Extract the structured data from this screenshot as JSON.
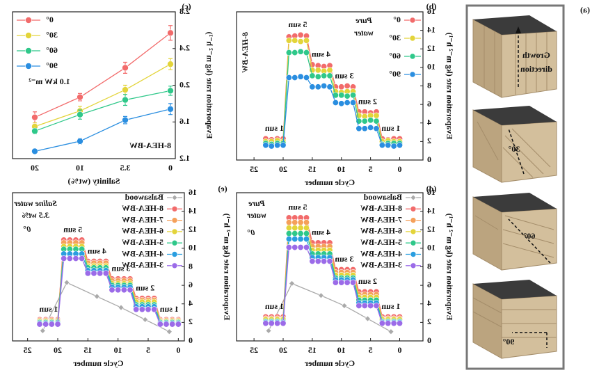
{
  "panel_a": {
    "label": "(a)",
    "growth_direction": [
      "Growth",
      "direction"
    ],
    "angles": [
      "30°",
      "60°",
      "90°"
    ]
  },
  "chart_data": [
    {
      "type": "line",
      "label": "(b)",
      "x_label": "Cycle number",
      "y_label": "Evaporation rate (kg m⁻² h⁻¹)",
      "xlim": [
        -4,
        28
      ],
      "xticks": [
        0,
        5,
        10,
        15,
        20,
        25
      ],
      "ylim": [
        0,
        16
      ],
      "yticks": [
        0,
        2,
        4,
        6,
        8,
        10,
        12,
        14,
        16
      ],
      "legend": "upper left",
      "notes": [
        "Pure",
        "water",
        "8-HEA-BW"
      ],
      "level_labels": [
        "1 sun",
        "2 sun",
        "3 sun",
        "4 sun",
        "5 sun",
        "1 sun"
      ],
      "x": [
        0,
        1,
        2,
        3,
        4,
        5,
        6,
        7,
        8,
        9,
        10,
        11,
        12,
        13,
        14,
        15,
        16,
        17,
        18,
        19,
        20,
        21,
        22,
        23
      ],
      "series": [
        {
          "name": "0°",
          "color": "#f26b6b",
          "values": [
            2.3,
            2.3,
            2.2,
            2.3,
            5.2,
            5.1,
            5.2,
            5.2,
            7.9,
            8.0,
            7.9,
            7.9,
            10.2,
            10.1,
            10.2,
            10.3,
            13.4,
            13.5,
            13.4,
            13.3,
            2.3,
            2.3,
            2.2,
            2.3
          ]
        },
        {
          "name": "30°",
          "color": "#e3d43a",
          "values": [
            2.0,
            2.0,
            2.1,
            2.0,
            4.8,
            4.8,
            4.7,
            4.8,
            7.4,
            7.4,
            7.3,
            7.4,
            9.7,
            9.6,
            9.7,
            9.7,
            12.9,
            12.8,
            12.9,
            12.9,
            2.0,
            2.1,
            2.0,
            2.0
          ]
        },
        {
          "name": "60°",
          "color": "#2fc88a",
          "values": [
            1.8,
            1.8,
            1.8,
            1.7,
            4.2,
            4.3,
            4.2,
            4.2,
            7.0,
            6.9,
            7.0,
            7.0,
            9.1,
            9.1,
            9.0,
            9.1,
            11.6,
            11.7,
            11.6,
            11.6,
            1.8,
            1.8,
            1.7,
            1.8
          ]
        },
        {
          "name": "90°",
          "color": "#2a8ee0",
          "values": [
            1.6,
            1.5,
            1.6,
            1.6,
            3.4,
            3.5,
            3.4,
            3.4,
            6.2,
            6.2,
            6.1,
            6.2,
            7.9,
            8.0,
            7.9,
            7.9,
            8.9,
            9.0,
            8.9,
            8.9,
            1.6,
            1.6,
            1.5,
            1.6
          ]
        }
      ]
    },
    {
      "type": "line",
      "label": "(c)",
      "x_label": "Salinity (wt%)",
      "y_label": "Evaporation rate (kg m⁻² h⁻¹)",
      "ylim": [
        1.2,
        2.8
      ],
      "yticks": [
        1.2,
        1.6,
        {
          "value": 2,
          "label": "2.0"
        },
        2.4,
        2.8
      ],
      "legend": "upper right",
      "notes": [
        "1.0 kW m⁻²",
        "8-HEA-BW"
      ],
      "categories": [
        "0",
        "3.5",
        "10",
        "20"
      ],
      "series": [
        {
          "name": "0°",
          "color": "#f26b6b",
          "values": [
            2.57,
            2.19,
            1.87,
            1.65
          ],
          "errors": [
            0.08,
            0.06,
            0.04,
            0.06
          ]
        },
        {
          "name": "30°",
          "color": "#e3d43a",
          "values": [
            2.23,
            1.95,
            1.72,
            1.55
          ],
          "errors": [
            0.06,
            0.05,
            0.05,
            0.04
          ]
        },
        {
          "name": "60°",
          "color": "#2fc88a",
          "values": [
            1.94,
            1.84,
            1.68,
            1.5
          ],
          "errors": [
            0.05,
            0.06,
            0.05,
            0.03
          ]
        },
        {
          "name": "90°",
          "color": "#2a8ee0",
          "values": [
            1.74,
            1.62,
            1.39,
            1.28
          ],
          "errors": [
            0.06,
            0.04,
            0.03,
            0.02
          ]
        }
      ]
    },
    {
      "type": "line",
      "label": "(d)",
      "x_label": "Cycle number",
      "y_label": "Evaporation rate (kg m⁻² h⁻¹)",
      "xlim": [
        -4,
        28
      ],
      "xticks": [
        0,
        5,
        10,
        15,
        20,
        25
      ],
      "ylim": [
        0,
        16
      ],
      "yticks": [
        0,
        2,
        4,
        6,
        8,
        10,
        12,
        14,
        16
      ],
      "legend": "upper left",
      "notes": [
        "Pure",
        "water",
        "0°"
      ],
      "level_labels": [
        "1 sun",
        "2 sun",
        "3 sun",
        "4 sun",
        "5 sun",
        "1 sun"
      ],
      "x": [
        0,
        1,
        2,
        3,
        4,
        5,
        6,
        7,
        8,
        9,
        10,
        11,
        12,
        13,
        14,
        15,
        16,
        17,
        18,
        19,
        20,
        21,
        22,
        23
      ],
      "series": [
        {
          "name": "Balsawood",
          "color": "#aaaaaa",
          "marker": "diamond",
          "x": [
            1.5,
            5.5,
            9.5,
            13.5,
            18.5,
            22.5
          ],
          "values": [
            1.0,
            2.4,
            3.8,
            4.9,
            6.2,
            1.1
          ]
        },
        {
          "name": "8-HEA-BW",
          "color": "#f26b6b",
          "values": [
            2.6,
            2.6,
            2.6,
            2.6,
            5.3,
            5.3,
            5.3,
            5.3,
            7.7,
            7.7,
            7.7,
            7.7,
            10.6,
            10.6,
            10.6,
            10.6,
            13.3,
            13.3,
            13.3,
            13.3,
            2.6,
            2.6,
            2.6,
            2.6
          ]
        },
        {
          "name": "7-HEA-BW",
          "color": "#f5a05a",
          "values": [
            2.4,
            2.4,
            2.4,
            2.4,
            5.0,
            5.0,
            5.0,
            5.0,
            7.4,
            7.4,
            7.4,
            7.4,
            10.2,
            10.2,
            10.2,
            10.2,
            12.8,
            12.8,
            12.8,
            12.8,
            2.4,
            2.4,
            2.4,
            2.4
          ]
        },
        {
          "name": "6-HEA-BW",
          "color": "#e3d43a",
          "values": [
            2.3,
            2.3,
            2.3,
            2.3,
            4.7,
            4.7,
            4.7,
            4.7,
            7.1,
            7.1,
            7.1,
            7.1,
            9.8,
            9.8,
            9.8,
            9.8,
            12.2,
            12.2,
            12.2,
            12.2,
            2.3,
            2.3,
            2.3,
            2.3
          ]
        },
        {
          "name": "5-HEA-BW",
          "color": "#2fc88a",
          "values": [
            2.1,
            2.1,
            2.1,
            2.1,
            4.4,
            4.4,
            4.4,
            4.4,
            6.8,
            6.8,
            6.8,
            6.8,
            9.4,
            9.4,
            9.4,
            9.4,
            11.6,
            11.6,
            11.6,
            11.6,
            2.1,
            2.1,
            2.1,
            2.1
          ]
        },
        {
          "name": "4-HEA-BW",
          "color": "#2a9ee0",
          "values": [
            2.0,
            2.0,
            2.0,
            2.0,
            4.1,
            4.1,
            4.1,
            4.1,
            6.6,
            6.6,
            6.6,
            6.6,
            9.0,
            9.0,
            9.0,
            9.0,
            11.0,
            11.0,
            11.0,
            11.0,
            2.0,
            2.0,
            2.0,
            2.0
          ]
        },
        {
          "name": "3-HEA-BW",
          "color": "#9b6be8",
          "values": [
            1.9,
            1.9,
            1.9,
            1.9,
            3.8,
            3.8,
            3.8,
            3.8,
            6.3,
            6.3,
            6.3,
            6.3,
            8.6,
            8.6,
            8.6,
            8.6,
            10.1,
            10.1,
            10.1,
            10.1,
            1.9,
            1.9,
            1.9,
            1.9
          ]
        }
      ]
    },
    {
      "type": "line",
      "label": "(e)",
      "x_label": "Cycle number",
      "y_label": "Evaporation rate (kg m⁻² h⁻¹)",
      "xlim": [
        -1,
        27.5
      ],
      "xticks": [
        0,
        5,
        10,
        15,
        20,
        25
      ],
      "ylim": [
        0,
        16
      ],
      "yticks": [
        0,
        2,
        4,
        6,
        8,
        10,
        12,
        14,
        16
      ],
      "legend": "upper left",
      "notes": [
        "Saline water",
        "3.5 wt%",
        "0°"
      ],
      "level_labels": [
        "1 sun",
        "2 sun",
        "3 sun",
        "4 sun",
        "5 sun",
        "1 sun"
      ],
      "x": [
        0,
        1,
        2,
        3,
        4,
        5,
        6,
        7,
        8,
        9,
        10,
        11,
        12,
        13,
        14,
        15,
        16,
        17,
        18,
        19,
        20,
        21,
        22,
        23
      ],
      "series": [
        {
          "name": "Balsawood",
          "color": "#aaaaaa",
          "marker": "diamond",
          "x": [
            1.5,
            5.5,
            9.5,
            13.5,
            18.5,
            22.5
          ],
          "values": [
            1.0,
            2.3,
            3.6,
            4.8,
            6.3,
            1.1
          ]
        },
        {
          "name": "8-HEA-BW",
          "color": "#f26b6b",
          "values": [
            2.3,
            2.3,
            2.3,
            2.3,
            4.6,
            4.6,
            4.6,
            4.6,
            6.7,
            6.7,
            6.7,
            6.7,
            8.6,
            8.6,
            8.6,
            8.6,
            10.9,
            10.9,
            10.9,
            10.9,
            2.3,
            2.3,
            2.3,
            2.3
          ]
        },
        {
          "name": "7-HEA-BW",
          "color": "#f5a05a",
          "values": [
            2.2,
            2.2,
            2.2,
            2.2,
            4.4,
            4.4,
            4.4,
            4.4,
            6.5,
            6.5,
            6.5,
            6.5,
            8.4,
            8.4,
            8.4,
            8.4,
            10.6,
            10.6,
            10.6,
            10.6,
            2.2,
            2.2,
            2.2,
            2.2
          ]
        },
        {
          "name": "6-HEA-BW",
          "color": "#e3d43a",
          "values": [
            2.1,
            2.1,
            2.1,
            2.1,
            4.2,
            4.2,
            4.2,
            4.2,
            6.2,
            6.2,
            6.2,
            6.2,
            8.1,
            8.1,
            8.1,
            8.1,
            10.2,
            10.2,
            10.2,
            10.2,
            2.1,
            2.1,
            2.1,
            2.1
          ]
        },
        {
          "name": "5-HEA-BW",
          "color": "#2fc88a",
          "values": [
            2.0,
            2.0,
            2.0,
            2.0,
            3.9,
            3.9,
            3.9,
            3.9,
            6.0,
            6.0,
            6.0,
            6.0,
            7.9,
            7.9,
            7.9,
            7.9,
            9.9,
            9.9,
            9.9,
            9.9,
            2.0,
            2.0,
            2.0,
            2.0
          ]
        },
        {
          "name": "4-HEA-BW",
          "color": "#2a9ee0",
          "values": [
            1.9,
            1.9,
            1.9,
            1.9,
            3.7,
            3.7,
            3.7,
            3.7,
            5.8,
            5.8,
            5.8,
            5.8,
            7.6,
            7.6,
            7.6,
            7.6,
            9.4,
            9.4,
            9.4,
            9.4,
            1.9,
            1.9,
            1.9,
            1.9
          ]
        },
        {
          "name": "3-HEA-BW",
          "color": "#9b6be8",
          "values": [
            1.8,
            1.8,
            1.8,
            1.8,
            3.4,
            3.4,
            3.4,
            3.4,
            5.5,
            5.5,
            5.5,
            5.5,
            7.3,
            7.3,
            7.3,
            7.3,
            8.9,
            8.9,
            8.9,
            8.9,
            1.8,
            1.8,
            1.8,
            1.8
          ]
        }
      ]
    }
  ]
}
